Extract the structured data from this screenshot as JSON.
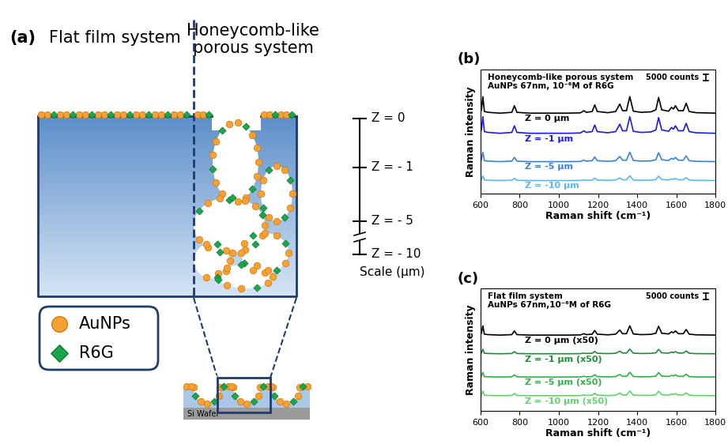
{
  "diagram": {
    "panel_label": "(a)",
    "titles": [
      "Flat film system",
      "Honeycomb-like\nporous system"
    ],
    "scale": {
      "ticks": [
        "Z = 0",
        "Z = - 1",
        "Z = - 5",
        "Z = - 10"
      ],
      "label": "Scale (µm)"
    },
    "key": [
      {
        "name": "AuNPs",
        "color": "#f7a035",
        "marker": "o"
      },
      {
        "name": "R6G",
        "color": "#1aa64b",
        "marker": "D"
      }
    ],
    "substrate": "Si Wafer"
  },
  "chart_data": [
    {
      "type": "line",
      "panel_label": "(b)",
      "annotations": [
        "Honeycomb-like porous system",
        "AuNPs 67nm, 10⁻⁶M of R6G"
      ],
      "scale_bar": {
        "value": 5000,
        "label": "5000 counts"
      },
      "x_label": "Raman shift (cm⁻¹)",
      "y_label": "Raman intensity",
      "xlim": [
        600,
        1800
      ],
      "xticks": [
        600,
        800,
        1000,
        1200,
        1400,
        1600,
        1800
      ],
      "ylim": [
        -5000,
        100000
      ],
      "tick_labels": "x",
      "x": [
        600,
        605,
        612,
        620,
        640,
        700,
        760,
        773,
        786,
        850,
        950,
        1050,
        1110,
        1128,
        1140,
        1170,
        1183,
        1196,
        1250,
        1290,
        1311,
        1325,
        1345,
        1362,
        1380,
        1420,
        1470,
        1495,
        1509,
        1525,
        1560,
        1575,
        1585,
        1595,
        1610,
        1635,
        1650,
        1665,
        1700,
        1800
      ],
      "series": [
        {
          "name": "Z = 0 µm",
          "color": "#000000",
          "values": [
            64400,
            65800,
            77000,
            64400,
            63700,
            63000,
            63700,
            69300,
            63700,
            63000,
            63000,
            63000,
            63280,
            65100,
            63700,
            64400,
            70000,
            64400,
            63420,
            64400,
            70700,
            65100,
            65100,
            77000,
            64680,
            63700,
            64120,
            65800,
            76300,
            65800,
            64680,
            67900,
            66500,
            69300,
            65100,
            65100,
            71400,
            64400,
            63420,
            63000
          ]
        },
        {
          "name": "Z = -1 µm",
          "color": "#1c1ce0",
          "values": [
            47400,
            48800,
            60000,
            47400,
            46700,
            46000,
            46700,
            52300,
            46700,
            46000,
            46000,
            46000,
            46280,
            48100,
            46700,
            47400,
            53000,
            47400,
            46420,
            47400,
            53700,
            48100,
            48100,
            60000,
            47680,
            46700,
            47120,
            48800,
            59300,
            48800,
            47680,
            50900,
            49500,
            52300,
            48100,
            48100,
            54400,
            47400,
            46420,
            46000
          ]
        },
        {
          "name": "Z = -5 µm",
          "color": "#3b82d6",
          "values": [
            22800,
            23600,
            30000,
            22800,
            22400,
            22000,
            22400,
            25600,
            22400,
            22000,
            22000,
            22000,
            22160,
            23200,
            22400,
            22800,
            26000,
            22800,
            22240,
            22800,
            26400,
            23200,
            23200,
            30000,
            22960,
            22400,
            22640,
            23600,
            29600,
            23600,
            22960,
            24800,
            24000,
            25600,
            23200,
            23200,
            26800,
            22800,
            22240,
            22000
          ]
        },
        {
          "name": "Z = -10 µm",
          "color": "#5bb8f0",
          "values": [
            6400,
            6800,
            10000,
            6400,
            6200,
            6000,
            6200,
            7800,
            6200,
            6000,
            6000,
            6000,
            6080,
            6600,
            6200,
            6400,
            8000,
            6400,
            6120,
            6400,
            8200,
            6600,
            6600,
            10000,
            6480,
            6200,
            6320,
            6800,
            9800,
            6800,
            6480,
            7400,
            7000,
            7800,
            6600,
            6600,
            8400,
            6400,
            6120,
            6000
          ]
        }
      ]
    },
    {
      "type": "line",
      "panel_label": "(c)",
      "annotations": [
        "Flat film system",
        "AuNPs 67nm,10⁻⁶M of R6G"
      ],
      "scale_bar": {
        "value": 5000,
        "label": "5000 counts"
      },
      "x_label": "Raman shift (cm⁻¹)",
      "y_label": "Raman intensity",
      "xlim": [
        600,
        1800
      ],
      "xticks": [
        600,
        800,
        1000,
        1200,
        1400,
        1600,
        1800
      ],
      "ylim": [
        -5000,
        100000
      ],
      "tick_labels": "x",
      "x": [
        600,
        605,
        612,
        620,
        640,
        700,
        760,
        773,
        786,
        850,
        950,
        1050,
        1110,
        1128,
        1140,
        1170,
        1183,
        1196,
        1250,
        1290,
        1311,
        1325,
        1345,
        1362,
        1380,
        1420,
        1470,
        1495,
        1509,
        1525,
        1560,
        1575,
        1585,
        1595,
        1610,
        1635,
        1650,
        1665,
        1700,
        1800
      ],
      "series": [
        {
          "name": "Z = 0 µm (x50)",
          "color": "#000000",
          "values": [
            60800,
            61600,
            68000,
            60800,
            60400,
            60000,
            60400,
            63600,
            60400,
            60000,
            60000,
            60000,
            60160,
            61200,
            60400,
            60800,
            64000,
            60800,
            60240,
            60800,
            64400,
            61200,
            61200,
            68000,
            60960,
            60400,
            60640,
            61600,
            67600,
            61600,
            60960,
            62800,
            62000,
            63600,
            61200,
            61200,
            64800,
            60800,
            60240,
            60000
          ]
        },
        {
          "name": "Z = -1 µm (x50)",
          "color": "#1e8c3a",
          "values": [
            44400,
            44800,
            48000,
            44400,
            44200,
            44000,
            44200,
            45800,
            44200,
            44000,
            44000,
            44000,
            44080,
            44600,
            44200,
            44400,
            46000,
            44400,
            44120,
            44400,
            46200,
            44600,
            44600,
            48000,
            44480,
            44200,
            44320,
            44800,
            47800,
            44800,
            44480,
            45400,
            45000,
            45800,
            44600,
            44600,
            46400,
            44400,
            44120,
            44000
          ]
        },
        {
          "name": "Z = -5 µm (x50)",
          "color": "#2fb04a",
          "values": [
            24400,
            24800,
            28000,
            24400,
            24200,
            24000,
            24200,
            25800,
            24200,
            24000,
            24000,
            24000,
            24080,
            24600,
            24200,
            24400,
            26000,
            24400,
            24120,
            24400,
            26200,
            24600,
            24600,
            28000,
            24480,
            24200,
            24320,
            24800,
            27800,
            24800,
            24480,
            25400,
            25000,
            25800,
            24600,
            24600,
            26400,
            24400,
            24120,
            24000
          ]
        },
        {
          "name": "Z = -10 µm (x50)",
          "color": "#62d26a",
          "values": [
            8400,
            8800,
            12000,
            8400,
            8200,
            8000,
            8200,
            9800,
            8200,
            8000,
            8000,
            8000,
            8080,
            8600,
            8200,
            8400,
            10000,
            8400,
            8120,
            8400,
            10200,
            8600,
            8600,
            12000,
            8480,
            8200,
            8320,
            8800,
            11800,
            8800,
            8480,
            9400,
            9000,
            9800,
            8600,
            8600,
            10400,
            8400,
            8120,
            8000
          ]
        }
      ]
    }
  ]
}
